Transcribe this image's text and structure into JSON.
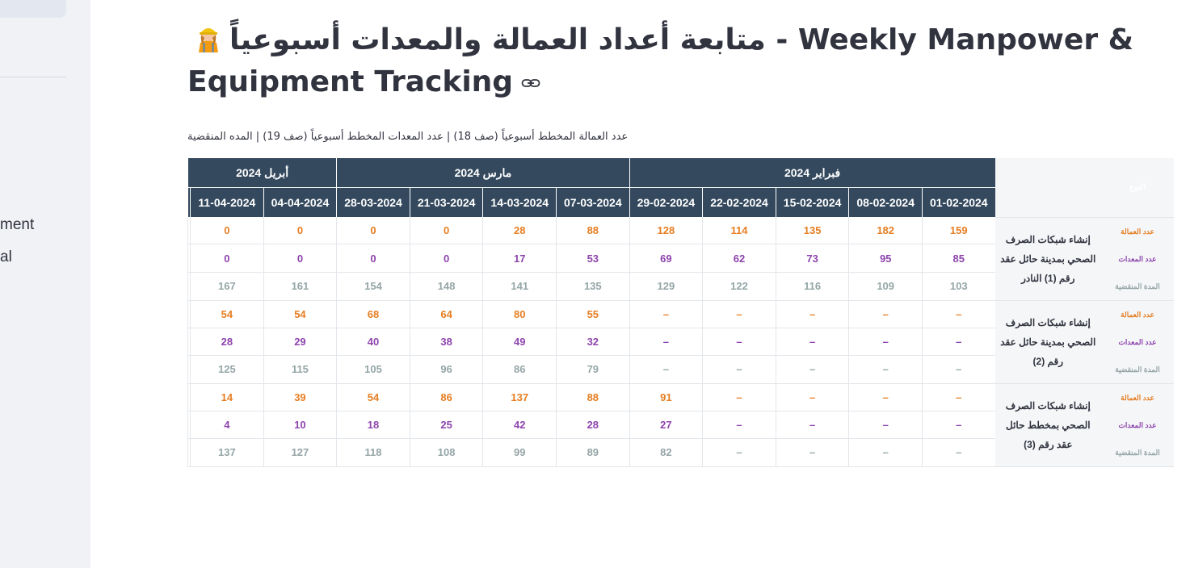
{
  "sidebar": {
    "items": [
      "ment",
      "al"
    ]
  },
  "title": {
    "text": "متابعة أعداد العمالة والمعدات أسبوعياً - Weekly Manpower & Equipment Tracking"
  },
  "caption": "عدد العمالة المخطط أسبوعياً (صف 18) | عدد المعدات المخطط أسبوعياً (صف 19) | المده المنقضية",
  "table": {
    "corner_label": "النوع",
    "months": [
      {
        "label": "فبراير 2024",
        "span": 5
      },
      {
        "label": "مارس 2024",
        "span": 4
      },
      {
        "label": "أبريل 2024",
        "span": 3
      }
    ],
    "dates": [
      "01-02-2024",
      "08-02-2024",
      "15-02-2024",
      "22-02-2024",
      "29-02-2024",
      "07-03-2024",
      "14-03-2024",
      "21-03-2024",
      "28-03-2024",
      "04-04-2024",
      "11-04-2024",
      ""
    ],
    "row_kinds": [
      "عدد العمالة",
      "عدد المعدات",
      "المدة المنقضية"
    ],
    "projects": [
      {
        "name": "إنشاء شبكات الصرف الصحي بمدينة حائل عقد رقم (1) النادر",
        "labor": [
          "159",
          "182",
          "135",
          "114",
          "128",
          "88",
          "28",
          "0",
          "0",
          "0",
          "0",
          ""
        ],
        "equipment": [
          "85",
          "95",
          "73",
          "62",
          "69",
          "53",
          "17",
          "0",
          "0",
          "0",
          "0",
          ""
        ],
        "elapsed": [
          "103",
          "109",
          "116",
          "122",
          "129",
          "135",
          "141",
          "148",
          "154",
          "161",
          "167",
          ""
        ]
      },
      {
        "name": "إنشاء شبكات الصرف الصحي بمدينة حائل عقد رقم (2)",
        "labor": [
          "–",
          "–",
          "–",
          "–",
          "–",
          "55",
          "80",
          "64",
          "68",
          "54",
          "54",
          ""
        ],
        "equipment": [
          "–",
          "–",
          "–",
          "–",
          "–",
          "32",
          "49",
          "38",
          "40",
          "29",
          "28",
          ""
        ],
        "elapsed": [
          "–",
          "–",
          "–",
          "–",
          "–",
          "79",
          "86",
          "96",
          "105",
          "115",
          "125",
          ""
        ]
      },
      {
        "name": "إنشاء شبكات الصرف الصحي بمخطط حائل عقد رقم (3)",
        "labor": [
          "–",
          "–",
          "–",
          "–",
          "91",
          "88",
          "137",
          "86",
          "54",
          "39",
          "14",
          ""
        ],
        "equipment": [
          "–",
          "–",
          "–",
          "–",
          "27",
          "28",
          "42",
          "25",
          "18",
          "10",
          "4",
          ""
        ],
        "elapsed": [
          "–",
          "–",
          "–",
          "–",
          "82",
          "89",
          "99",
          "108",
          "118",
          "127",
          "137",
          ""
        ]
      }
    ]
  },
  "colors": {
    "header": "#34495e",
    "labor": "#e67e22",
    "equipment": "#8e44ad",
    "elapsed": "#95a5a6"
  }
}
